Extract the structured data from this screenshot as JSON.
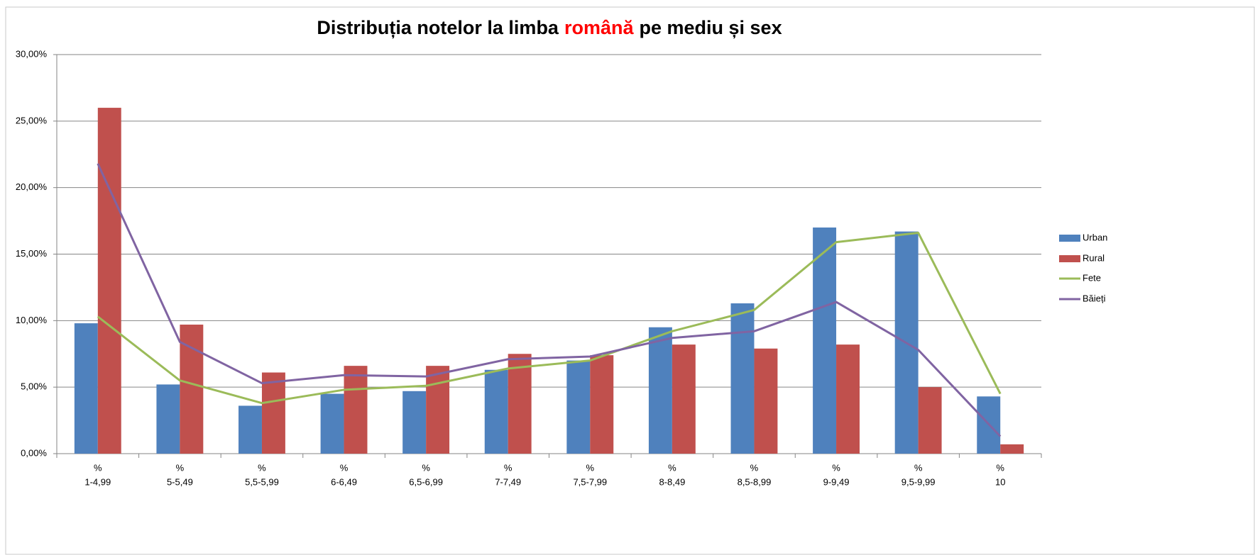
{
  "chart_data": {
    "type": "bar-line",
    "title": {
      "before": "Distribuția notelor la limba",
      "highlight": "română",
      "after": "pe mediu și sex",
      "highlight_color": "#ff0000"
    },
    "categories": [
      [
        "%",
        "1-4,99"
      ],
      [
        "%",
        "5-5,49"
      ],
      [
        "%",
        "5,5-5,99"
      ],
      [
        "%",
        "6-6,49"
      ],
      [
        "%",
        "6,5-6,99"
      ],
      [
        "%",
        "7-7,49"
      ],
      [
        "%",
        "7,5-7,99"
      ],
      [
        "%",
        "8-8,49"
      ],
      [
        "%",
        "8,5-8,99"
      ],
      [
        "%",
        "9-9,49"
      ],
      [
        "%",
        "9,5-9,99"
      ],
      [
        "%",
        "10"
      ]
    ],
    "series": [
      {
        "name": "Urban",
        "kind": "bar",
        "color": "#4f81bd",
        "values": [
          9.8,
          5.2,
          3.6,
          4.5,
          4.7,
          6.3,
          7.0,
          9.5,
          11.3,
          17.0,
          16.7,
          4.3
        ]
      },
      {
        "name": "Rural",
        "kind": "bar",
        "color": "#c0504d",
        "values": [
          26.0,
          9.7,
          6.1,
          6.6,
          6.6,
          7.5,
          7.4,
          8.2,
          7.9,
          8.2,
          5.0,
          0.7
        ]
      },
      {
        "name": "Fete",
        "kind": "line",
        "color": "#9bbb59",
        "values": [
          10.3,
          5.5,
          3.8,
          4.8,
          5.1,
          6.4,
          7.0,
          9.2,
          10.8,
          15.9,
          16.6,
          4.5
        ]
      },
      {
        "name": "Băieți",
        "kind": "line",
        "color": "#8064a2",
        "values": [
          21.8,
          8.4,
          5.3,
          5.9,
          5.8,
          7.1,
          7.3,
          8.7,
          9.2,
          11.4,
          7.8,
          1.3
        ]
      }
    ],
    "ylim": [
      0,
      30
    ],
    "yticks": [
      {
        "value": 0,
        "label": "0,00%"
      },
      {
        "value": 5,
        "label": "5,00%"
      },
      {
        "value": 10,
        "label": "10,00%"
      },
      {
        "value": 15,
        "label": "15,00%"
      },
      {
        "value": 20,
        "label": "20,00%"
      },
      {
        "value": 25,
        "label": "25,00%"
      },
      {
        "value": 30,
        "label": "30,00%"
      }
    ],
    "grid": true,
    "legend": "right"
  }
}
